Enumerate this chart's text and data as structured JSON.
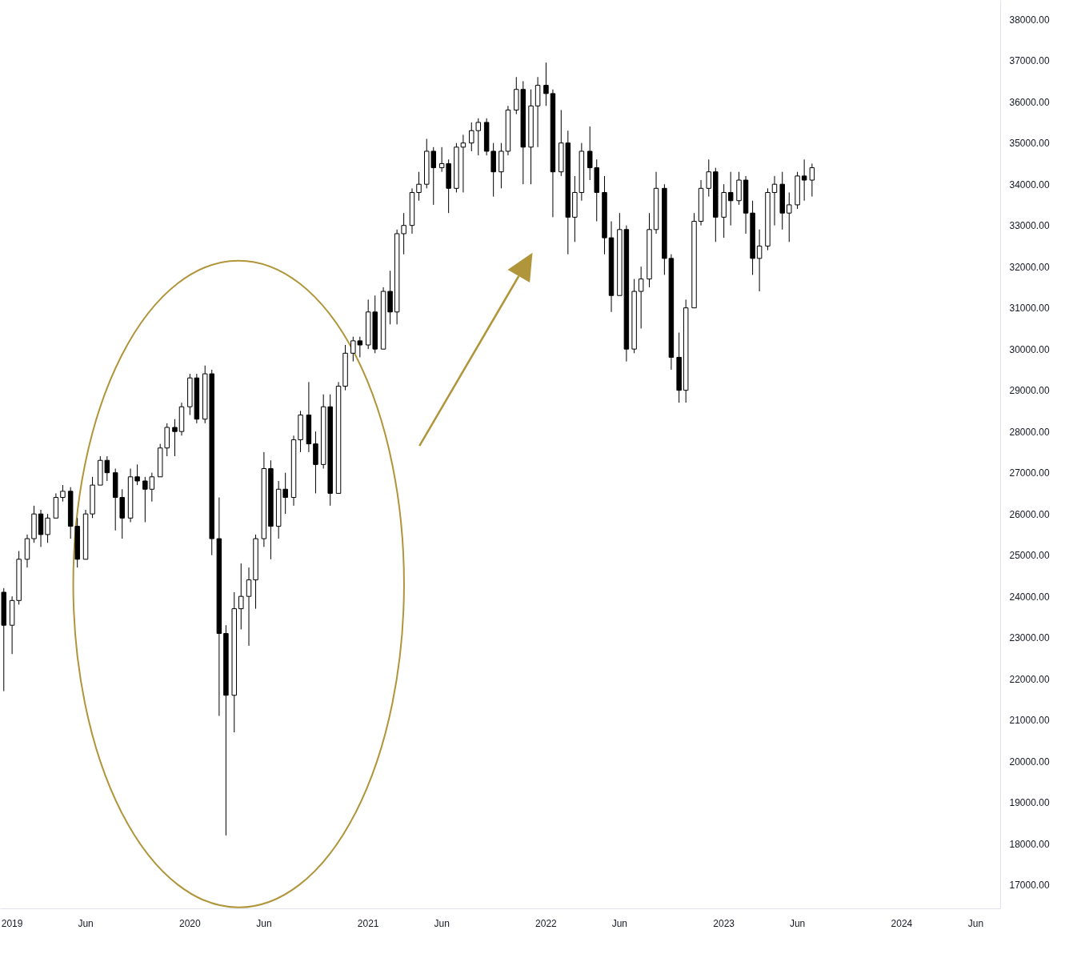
{
  "chart_data": {
    "type": "candlestick",
    "color": "#000000",
    "grid": false,
    "xlim": [
      "2018-12-08",
      "2024-07-22"
    ],
    "ylim": [
      16420,
      38460
    ],
    "xticks": [
      {
        "value": "2019-01-01",
        "label": "2019"
      },
      {
        "value": "2019-06-01",
        "label": "Jun"
      },
      {
        "value": "2020-01-01",
        "label": "2020"
      },
      {
        "value": "2020-06-01",
        "label": "Jun"
      },
      {
        "value": "2021-01-01",
        "label": "2021"
      },
      {
        "value": "2021-06-01",
        "label": "Jun"
      },
      {
        "value": "2022-01-01",
        "label": "2022"
      },
      {
        "value": "2022-06-01",
        "label": "Jun"
      },
      {
        "value": "2023-01-01",
        "label": "2023"
      },
      {
        "value": "2023-06-01",
        "label": "Jun"
      },
      {
        "value": "2024-01-01",
        "label": "2024"
      },
      {
        "value": "2024-06-01",
        "label": "Jun"
      }
    ],
    "yticks": [
      {
        "value": 17000,
        "label": "17000.00"
      },
      {
        "value": 18000,
        "label": "18000.00"
      },
      {
        "value": 19000,
        "label": "19000.00"
      },
      {
        "value": 20000,
        "label": "20000.00"
      },
      {
        "value": 21000,
        "label": "21000.00"
      },
      {
        "value": 22000,
        "label": "22000.00"
      },
      {
        "value": 23000,
        "label": "23000.00"
      },
      {
        "value": 24000,
        "label": "24000.00"
      },
      {
        "value": 25000,
        "label": "25000.00"
      },
      {
        "value": 26000,
        "label": "26000.00"
      },
      {
        "value": 27000,
        "label": "27000.00"
      },
      {
        "value": 28000,
        "label": "28000.00"
      },
      {
        "value": 29000,
        "label": "29000.00"
      },
      {
        "value": 30000,
        "label": "30000.00"
      },
      {
        "value": 31000,
        "label": "31000.00"
      },
      {
        "value": 32000,
        "label": "32000.00"
      },
      {
        "value": 33000,
        "label": "33000.00"
      },
      {
        "value": 34000,
        "label": "34000.00"
      },
      {
        "value": 35000,
        "label": "35000.00"
      },
      {
        "value": 36000,
        "label": "36000.00"
      },
      {
        "value": 37000,
        "label": "37000.00"
      },
      {
        "value": 38000,
        "label": "38000.00"
      }
    ],
    "x": [
      "2018-12-15",
      "2019-01-01",
      "2019-01-15",
      "2019-02-01",
      "2019-02-15",
      "2019-03-01",
      "2019-03-15",
      "2019-04-01",
      "2019-04-15",
      "2019-05-01",
      "2019-05-15",
      "2019-06-01",
      "2019-06-15",
      "2019-07-01",
      "2019-07-15",
      "2019-08-01",
      "2019-08-15",
      "2019-09-01",
      "2019-09-15",
      "2019-10-01",
      "2019-10-15",
      "2019-11-01",
      "2019-11-15",
      "2019-12-01",
      "2019-12-15",
      "2020-01-01",
      "2020-01-15",
      "2020-02-01",
      "2020-02-15",
      "2020-03-01",
      "2020-03-15",
      "2020-04-01",
      "2020-04-15",
      "2020-05-01",
      "2020-05-15",
      "2020-06-01",
      "2020-06-15",
      "2020-07-01",
      "2020-07-15",
      "2020-08-01",
      "2020-08-15",
      "2020-09-01",
      "2020-09-15",
      "2020-10-01",
      "2020-10-15",
      "2020-11-01",
      "2020-11-15",
      "2020-12-01",
      "2020-12-15",
      "2021-01-01",
      "2021-01-15",
      "2021-02-01",
      "2021-02-15",
      "2021-03-01",
      "2021-03-15",
      "2021-04-01",
      "2021-04-15",
      "2021-05-01",
      "2021-05-15",
      "2021-06-01",
      "2021-06-15",
      "2021-07-01",
      "2021-07-15",
      "2021-08-01",
      "2021-08-15",
      "2021-09-01",
      "2021-09-15",
      "2021-10-01",
      "2021-10-15",
      "2021-11-01",
      "2021-11-15",
      "2021-12-01",
      "2021-12-15",
      "2022-01-01",
      "2022-01-15",
      "2022-02-01",
      "2022-02-15",
      "2022-03-01",
      "2022-03-15",
      "2022-04-01",
      "2022-04-15",
      "2022-05-01",
      "2022-05-15",
      "2022-06-01",
      "2022-06-15",
      "2022-07-01",
      "2022-07-15",
      "2022-08-01",
      "2022-08-15",
      "2022-09-01",
      "2022-09-15",
      "2022-10-01",
      "2022-10-15",
      "2022-11-01",
      "2022-11-15",
      "2022-12-01",
      "2022-12-15",
      "2023-01-01",
      "2023-01-15",
      "2023-02-01",
      "2023-02-15",
      "2023-03-01",
      "2023-03-15",
      "2023-04-01",
      "2023-04-15",
      "2023-05-01",
      "2023-05-15",
      "2023-06-01",
      "2023-06-15",
      "2023-07-01"
    ],
    "ohlc": [
      [
        24100,
        24200,
        21700,
        23300
      ],
      [
        23300,
        24000,
        22600,
        23900
      ],
      [
        23900,
        25100,
        23800,
        24900
      ],
      [
        24900,
        25500,
        24700,
        25400
      ],
      [
        25400,
        26200,
        25300,
        26000
      ],
      [
        26000,
        26100,
        25200,
        25500
      ],
      [
        25500,
        26000,
        25300,
        25900
      ],
      [
        25900,
        26500,
        25900,
        26400
      ],
      [
        26400,
        26700,
        26300,
        26550
      ],
      [
        26550,
        26650,
        25400,
        25700
      ],
      [
        25700,
        25900,
        24700,
        24900
      ],
      [
        24900,
        26100,
        24900,
        26000
      ],
      [
        26000,
        26900,
        25900,
        26700
      ],
      [
        26700,
        27400,
        26700,
        27300
      ],
      [
        27300,
        27400,
        26800,
        27000
      ],
      [
        27000,
        27100,
        25600,
        26400
      ],
      [
        26400,
        26600,
        25400,
        25900
      ],
      [
        25900,
        27100,
        25800,
        26900
      ],
      [
        26900,
        27200,
        26700,
        26800
      ],
      [
        26800,
        26900,
        25800,
        26600
      ],
      [
        26600,
        27000,
        26300,
        26900
      ],
      [
        26900,
        27700,
        26900,
        27600
      ],
      [
        27600,
        28200,
        27400,
        28100
      ],
      [
        28100,
        28300,
        27400,
        28000
      ],
      [
        28000,
        28700,
        27900,
        28600
      ],
      [
        28600,
        29400,
        28400,
        29300
      ],
      [
        29300,
        29400,
        28200,
        28300
      ],
      [
        28300,
        29600,
        28200,
        29400
      ],
      [
        29400,
        29500,
        25000,
        25400
      ],
      [
        25400,
        26400,
        21100,
        23100
      ],
      [
        23100,
        23300,
        18200,
        21600
      ],
      [
        21600,
        24100,
        20700,
        23700
      ],
      [
        23700,
        24800,
        23200,
        24000
      ],
      [
        24000,
        24700,
        22800,
        24400
      ],
      [
        24400,
        25500,
        23700,
        25400
      ],
      [
        25400,
        27500,
        25200,
        27100
      ],
      [
        27100,
        27300,
        24900,
        25700
      ],
      [
        25700,
        26800,
        25400,
        26600
      ],
      [
        26600,
        27000,
        26000,
        26400
      ],
      [
        26400,
        27900,
        26200,
        27800
      ],
      [
        27800,
        28500,
        27500,
        28400
      ],
      [
        28400,
        29200,
        27500,
        27700
      ],
      [
        27700,
        28000,
        26500,
        27200
      ],
      [
        27200,
        28900,
        27100,
        28600
      ],
      [
        28600,
        28900,
        26200,
        26500
      ],
      [
        26500,
        29200,
        26500,
        29100
      ],
      [
        29100,
        30100,
        29000,
        29900
      ],
      [
        29900,
        30300,
        29700,
        30200
      ],
      [
        30200,
        30300,
        29800,
        30100
      ],
      [
        30100,
        31200,
        30000,
        30900
      ],
      [
        30900,
        31300,
        29900,
        30000
      ],
      [
        30000,
        31500,
        30000,
        31400
      ],
      [
        31400,
        31900,
        30600,
        30900
      ],
      [
        30900,
        32900,
        30600,
        32800
      ],
      [
        32800,
        33300,
        32300,
        33000
      ],
      [
        33000,
        33900,
        32800,
        33800
      ],
      [
        33800,
        34300,
        33600,
        34000
      ],
      [
        34000,
        35100,
        33900,
        34800
      ],
      [
        34800,
        34900,
        33500,
        34400
      ],
      [
        34400,
        34900,
        34300,
        34500
      ],
      [
        34500,
        34600,
        33300,
        33900
      ],
      [
        33900,
        35000,
        33800,
        34900
      ],
      [
        34900,
        35200,
        33800,
        35000
      ],
      [
        35000,
        35500,
        34800,
        35300
      ],
      [
        35300,
        35600,
        34700,
        35500
      ],
      [
        35500,
        35600,
        34700,
        34800
      ],
      [
        34800,
        35000,
        33700,
        34300
      ],
      [
        34300,
        35000,
        33900,
        34800
      ],
      [
        34800,
        35900,
        34700,
        35800
      ],
      [
        35800,
        36600,
        35700,
        36300
      ],
      [
        36300,
        36500,
        34000,
        34900
      ],
      [
        34900,
        36300,
        34000,
        35900
      ],
      [
        35900,
        36600,
        34900,
        36400
      ],
      [
        36400,
        36950,
        35900,
        36200
      ],
      [
        36200,
        36300,
        33200,
        34300
      ],
      [
        34300,
        35800,
        34200,
        35000
      ],
      [
        35000,
        35300,
        32300,
        33200
      ],
      [
        33200,
        34200,
        32600,
        33800
      ],
      [
        33800,
        35000,
        33600,
        34800
      ],
      [
        34800,
        35400,
        34100,
        34400
      ],
      [
        34400,
        34600,
        33100,
        33800
      ],
      [
        33800,
        34200,
        32300,
        32700
      ],
      [
        32700,
        33100,
        30900,
        31300
      ],
      [
        31300,
        33300,
        31300,
        32900
      ],
      [
        32900,
        33000,
        29700,
        30000
      ],
      [
        30000,
        31700,
        29900,
        31400
      ],
      [
        31400,
        32000,
        30500,
        31700
      ],
      [
        31700,
        33300,
        31500,
        32900
      ],
      [
        32900,
        34300,
        32800,
        33900
      ],
      [
        33900,
        34000,
        31800,
        32200
      ],
      [
        32200,
        32300,
        29500,
        29800
      ],
      [
        29800,
        30400,
        28700,
        29000
      ],
      [
        29000,
        31200,
        28700,
        31000
      ],
      [
        31000,
        33300,
        31000,
        33100
      ],
      [
        33100,
        34100,
        33000,
        33900
      ],
      [
        33900,
        34600,
        33700,
        34300
      ],
      [
        34300,
        34400,
        32600,
        33200
      ],
      [
        33200,
        34000,
        32700,
        33800
      ],
      [
        33800,
        34300,
        33000,
        33600
      ],
      [
        33600,
        34300,
        33500,
        34100
      ],
      [
        34100,
        34200,
        32800,
        33300
      ],
      [
        33300,
        33600,
        31800,
        32200
      ],
      [
        32200,
        32900,
        31400,
        32500
      ],
      [
        32500,
        33900,
        32400,
        33800
      ],
      [
        33800,
        34200,
        33000,
        34000
      ],
      [
        34000,
        34300,
        32900,
        33300
      ],
      [
        33300,
        33800,
        32600,
        33500
      ],
      [
        33500,
        34300,
        33400,
        34200
      ],
      [
        34200,
        34600,
        33600,
        34100
      ],
      [
        34100,
        34500,
        33700,
        34400
      ]
    ]
  }
}
